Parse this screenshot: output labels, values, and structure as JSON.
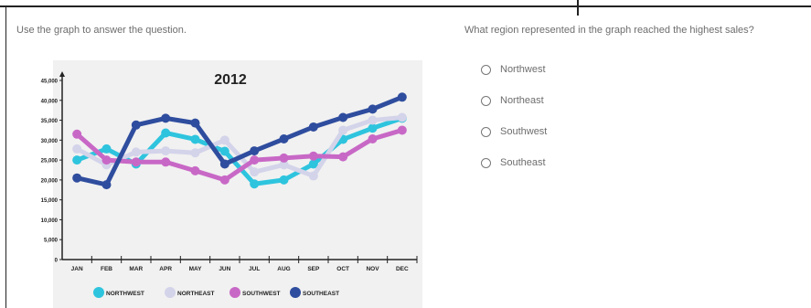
{
  "page": {
    "instruction": "Use the graph to answer the question."
  },
  "question": {
    "text": "What region represented in the graph reached the highest sales?",
    "options": [
      "Northwest",
      "Northeast",
      "Southwest",
      "Southeast"
    ]
  },
  "chart_data": {
    "type": "line",
    "title": "2012",
    "categories": [
      "JAN",
      "FEB",
      "MAR",
      "APR",
      "MAY",
      "JUN",
      "JUL",
      "AUG",
      "SEP",
      "OCT",
      "NOV",
      "DEC"
    ],
    "y_ticks": [
      "0",
      "5,000",
      "10,000",
      "15,000",
      "20,000",
      "25,000",
      "30,000",
      "35,000",
      "40,000",
      "45,000"
    ],
    "ylim": [
      0,
      45000
    ],
    "series": [
      {
        "name": "NORTHWEST",
        "color": "#2ec4de",
        "values": [
          25000,
          27800,
          24000,
          31800,
          30200,
          27200,
          19000,
          20000,
          24000,
          30200,
          33000,
          35500
        ]
      },
      {
        "name": "NORTHEAST",
        "color": "#d3d3ea",
        "values": [
          27800,
          23800,
          27000,
          27300,
          26800,
          30000,
          22000,
          23800,
          21000,
          32500,
          35000,
          35700
        ]
      },
      {
        "name": "SOUTHWEST",
        "color": "#c868c6",
        "values": [
          31500,
          25000,
          24500,
          24500,
          22300,
          20000,
          25000,
          25500,
          26000,
          25800,
          30300,
          32500
        ]
      },
      {
        "name": "SOUTHEAST",
        "color": "#2f4d9e",
        "values": [
          20500,
          18800,
          33800,
          35500,
          34300,
          24000,
          27300,
          30300,
          33300,
          35700,
          37800,
          40800
        ]
      }
    ],
    "legend": "bottom",
    "grid": false
  }
}
